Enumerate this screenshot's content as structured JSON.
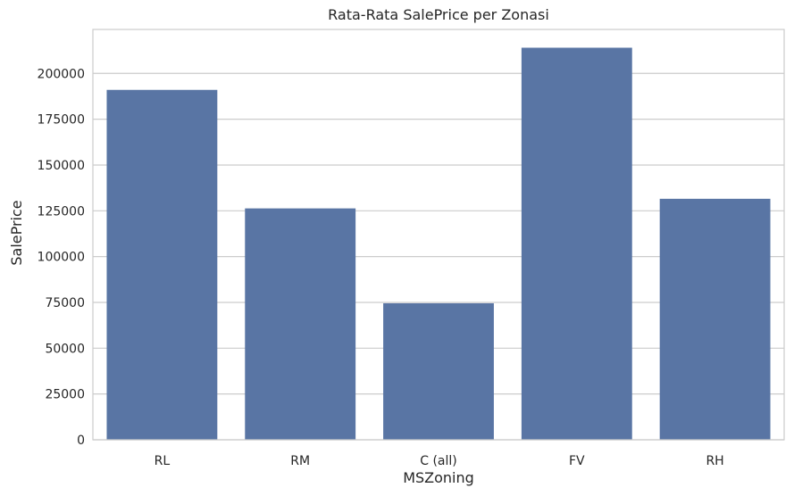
{
  "chart_data": {
    "type": "bar",
    "title": "Rata-Rata SalePrice per Zonasi",
    "xlabel": "MSZoning",
    "ylabel": "SalePrice",
    "categories": [
      "RL",
      "RM",
      "C (all)",
      "FV",
      "RH"
    ],
    "values": [
      191005,
      126317,
      74528,
      214014,
      131558
    ],
    "ylim": [
      0,
      224000
    ],
    "yticks": [
      0,
      25000,
      50000,
      75000,
      100000,
      125000,
      150000,
      175000,
      200000
    ],
    "ytick_labels": [
      "0",
      "25000",
      "50000",
      "75000",
      "100000",
      "125000",
      "150000",
      "175000",
      "200000"
    ],
    "grid": true,
    "bar_color": "#5975a4",
    "grid_color": "#cccccc",
    "frame_color": "#cccccc"
  }
}
